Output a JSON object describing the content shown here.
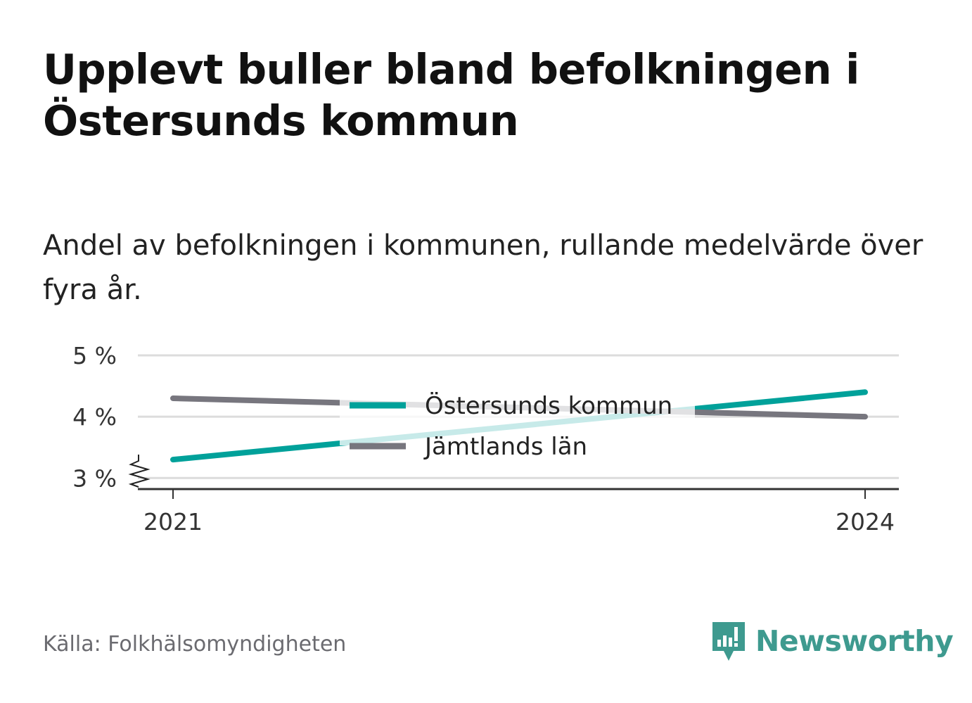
{
  "header": {
    "title": "Upplevt buller bland befolkningen i Östersunds kommun",
    "subtitle": "Andel av befolkningen i kommunen, rullande medelvärde över fyra år."
  },
  "footer": {
    "source": "Källa: Folkhälsomyndigheten",
    "brand": "Newsworthy",
    "brand_icon": "bar-chart-speech-bubble-icon",
    "brand_color": "#3e9a8f"
  },
  "chart_data": {
    "type": "line",
    "x": [
      "2021",
      "2024"
    ],
    "series": [
      {
        "name": "Östersunds kommun",
        "values": [
          3.3,
          4.4
        ],
        "color": "#00a19a"
      },
      {
        "name": "Jämtlands län",
        "values": [
          4.3,
          4.0
        ],
        "color": "#77767e"
      }
    ],
    "yticks": [
      3,
      4,
      5
    ],
    "ytick_labels": [
      "3 %",
      "4 %",
      "5 %"
    ],
    "ylim": [
      2.82,
      5
    ],
    "axis_break": true,
    "grid": true,
    "legend_position": "center"
  }
}
